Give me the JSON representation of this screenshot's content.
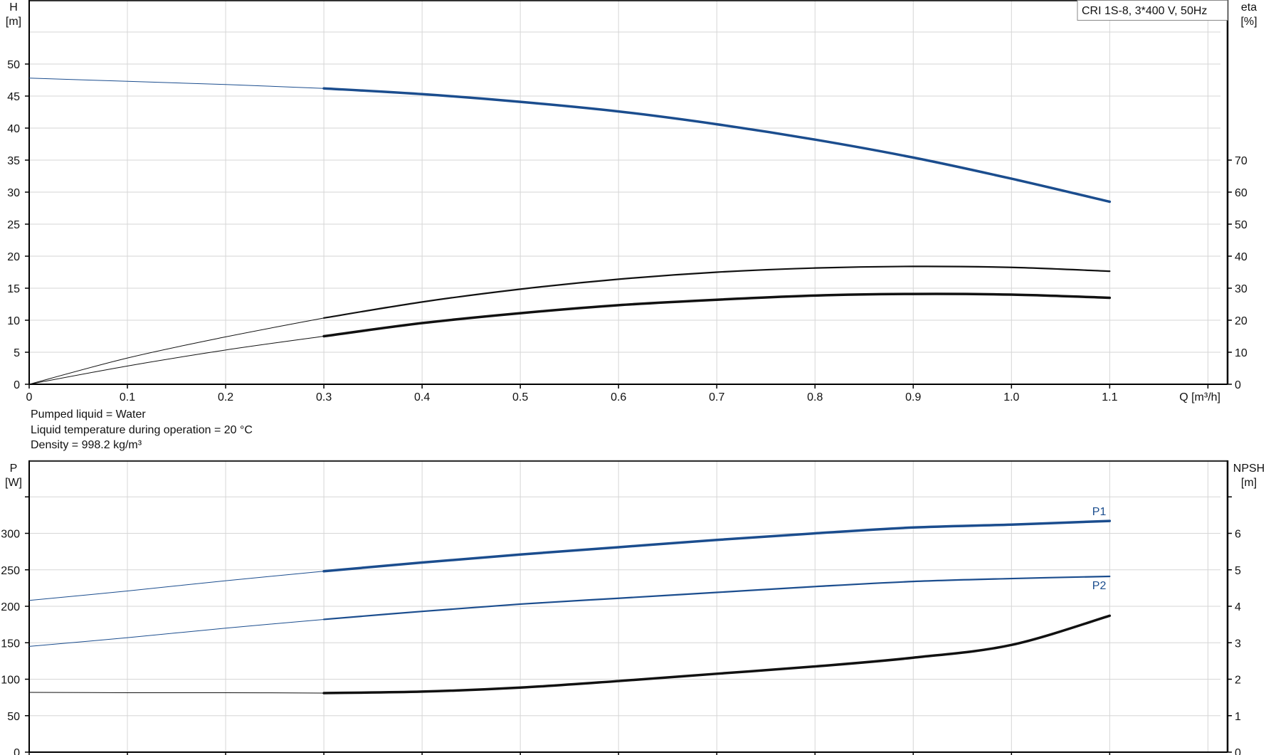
{
  "chart_data": [
    {
      "type": "line",
      "title": "",
      "legend_box": "CRI 1S-8, 3*400 V, 50Hz",
      "xlabel": "Q [m³/h]",
      "ylabel": [
        "H",
        "[m]"
      ],
      "y2label": [
        "eta",
        "[%]"
      ],
      "xlim": [
        0,
        1.22
      ],
      "ylim": [
        0,
        60
      ],
      "y2lim": [
        0,
        120
      ],
      "grid": true,
      "xticks": [
        0,
        0.1,
        0.2,
        0.3,
        0.4,
        0.5,
        0.6,
        0.7,
        0.8,
        0.9,
        1.0,
        1.1
      ],
      "xtick_labels": [
        "0",
        "0.1",
        "0.2",
        "0.3",
        "0.4",
        "0.5",
        "0.6",
        "0.7",
        "0.8",
        "0.9",
        "1.0",
        "1.1"
      ],
      "yticks": [
        0,
        5,
        10,
        15,
        20,
        25,
        30,
        35,
        40,
        45,
        50
      ],
      "y2ticks": [
        0,
        10,
        20,
        30,
        40,
        50,
        60,
        70
      ],
      "x": [
        0,
        0.1,
        0.2,
        0.3,
        0.4,
        0.5,
        0.6,
        0.7,
        0.8,
        0.9,
        1.0,
        1.1
      ],
      "series": [
        {
          "axis": "left",
          "color": "#1b4d8e",
          "values": [
            47.8,
            47.3,
            46.8,
            46.2,
            45.3,
            44.1,
            42.6,
            40.6,
            38.2,
            35.4,
            32.1,
            28.5
          ]
        },
        {
          "axis": "right",
          "color": "#111111",
          "values": [
            0,
            8.2,
            14.8,
            20.7,
            25.7,
            29.7,
            32.8,
            35.0,
            36.3,
            36.8,
            36.5,
            35.3
          ]
        },
        {
          "axis": "right",
          "color": "#111111",
          "values": [
            0,
            5.7,
            10.7,
            15.0,
            19.1,
            22.2,
            24.7,
            26.4,
            27.7,
            28.2,
            28.0,
            27.0
          ]
        }
      ]
    },
    {
      "type": "line",
      "title": "",
      "ylabel": [
        "P",
        "[W]"
      ],
      "y2label": [
        "NPSH",
        "[m]"
      ],
      "xlim": [
        0,
        1.22
      ],
      "ylim": [
        0,
        400
      ],
      "y2lim": [
        0,
        8
      ],
      "grid": true,
      "xticks": [
        0,
        0.1,
        0.2,
        0.3,
        0.4,
        0.5,
        0.6,
        0.7,
        0.8,
        0.9,
        1.0,
        1.1
      ],
      "yticks": [
        0,
        50,
        100,
        150,
        200,
        250,
        300
      ],
      "y2ticks": [
        0,
        1,
        2,
        3,
        4,
        5,
        6
      ],
      "x": [
        0,
        0.1,
        0.2,
        0.3,
        0.4,
        0.5,
        0.6,
        0.7,
        0.8,
        0.9,
        1.0,
        1.1
      ],
      "series": [
        {
          "name": "P1",
          "axis": "left",
          "color": "#1b4d8e",
          "values": [
            208,
            221,
            235,
            248,
            260,
            271,
            281,
            291,
            300,
            308,
            312,
            317
          ]
        },
        {
          "name": "P2",
          "axis": "left",
          "color": "#1b4d8e",
          "values": [
            145,
            157,
            170,
            182,
            193,
            203,
            211,
            219,
            227,
            234,
            238,
            241
          ]
        },
        {
          "axis": "right",
          "color": "#111111",
          "values": [
            1.64,
            1.63,
            1.63,
            1.62,
            1.66,
            1.77,
            1.95,
            2.15,
            2.35,
            2.59,
            2.94,
            3.74
          ]
        }
      ]
    }
  ],
  "conditions": [
    "Pumped liquid = Water",
    "Liquid temperature during operation = 20 °C",
    "Density = 998.2 kg/m³"
  ]
}
